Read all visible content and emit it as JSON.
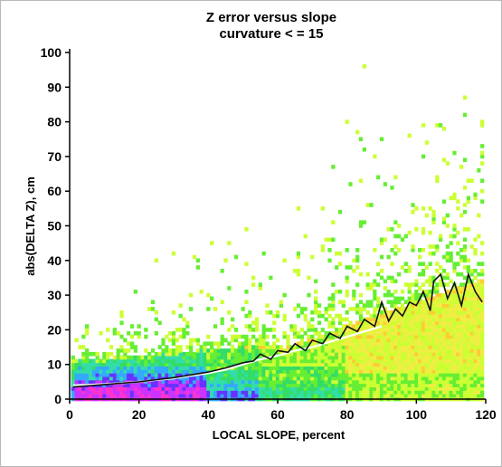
{
  "chart_data": {
    "type": "heatmap",
    "title": [
      "Z error versus slope",
      "curvature < = 15"
    ],
    "xlabel": "LOCAL SLOPE, percent",
    "ylabel": "abs(DELTA Z), cm",
    "xlim": [
      0,
      120
    ],
    "ylim": [
      0,
      100
    ],
    "x_ticks": [
      0,
      20,
      40,
      60,
      80,
      100,
      120
    ],
    "y_ticks": [
      0,
      10,
      20,
      30,
      40,
      50,
      60,
      70,
      80,
      90,
      100
    ],
    "density_colors": [
      "#ff33cc",
      "#cc33ff",
      "#6633ff",
      "#33aaff",
      "#33ddaa",
      "#33dd66",
      "#66ee33",
      "#ccff33",
      "#eeee44",
      "#ffcc33"
    ],
    "mean_line_color": "#ffffff",
    "median_line_color": "#111111",
    "mean_curve": {
      "x": [
        1,
        5,
        10,
        15,
        20,
        25,
        30,
        35,
        40,
        45,
        50,
        55,
        60,
        65,
        70,
        75,
        80,
        85,
        90
      ],
      "y": [
        4,
        4.1,
        4.3,
        4.6,
        5,
        5.5,
        6,
        6.8,
        7.5,
        8.5,
        10,
        11.5,
        12.5,
        14,
        15,
        16.5,
        18,
        19.5,
        21
      ]
    },
    "median_curve": {
      "x": [
        1,
        5,
        10,
        15,
        20,
        25,
        30,
        35,
        40,
        45,
        50,
        53,
        55,
        58,
        60,
        63,
        65,
        68,
        70,
        73,
        75,
        78,
        80,
        83,
        85,
        88,
        90,
        92,
        94,
        96,
        98,
        100,
        102,
        104,
        105,
        107,
        109,
        111,
        113,
        115,
        117,
        119
      ],
      "y": [
        3.5,
        3.8,
        4.2,
        4.6,
        5,
        5.6,
        6.2,
        7,
        7.8,
        9,
        10.5,
        11,
        13,
        11.5,
        14,
        13.5,
        16,
        14,
        17,
        16,
        19,
        17.5,
        21,
        19.5,
        23,
        21,
        28,
        22.5,
        26,
        24,
        28,
        27,
        31,
        25.5,
        34,
        36,
        29,
        33.5,
        27,
        36,
        31,
        28
      ]
    }
  }
}
